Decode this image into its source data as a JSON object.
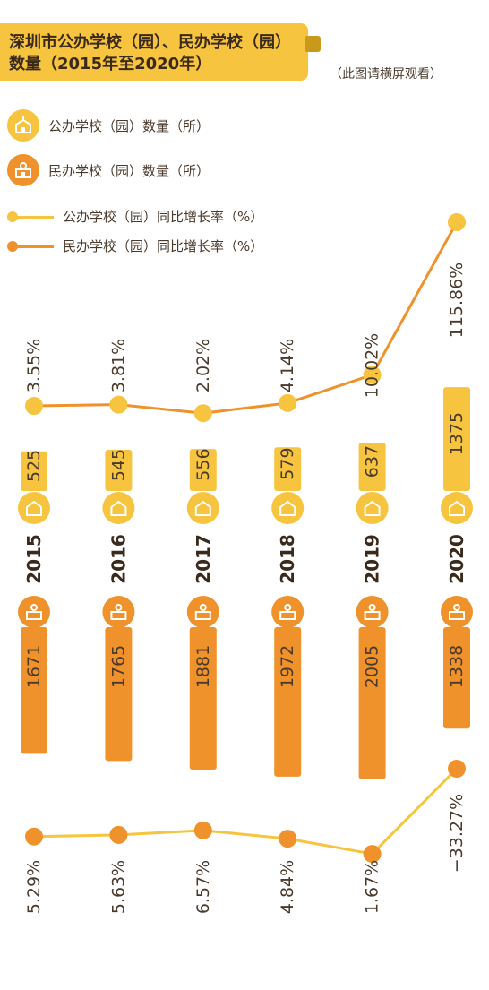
{
  "title": {
    "line1": "深圳市公办学校（园）、民办学校（园）",
    "line2": "数量（2015年至2020年）"
  },
  "note": "（此图请横屏观看）",
  "legend": {
    "public_count": "公办学校（园）数量（所）",
    "private_count": "民办学校（园）数量（所）",
    "public_growth": "公办学校（园）同比增长率（%）",
    "private_growth": "民办学校（园）同比增长率（%）"
  },
  "colors": {
    "public": "#f6c43f",
    "private": "#f0922b",
    "text": "#4a3a2c"
  },
  "icons": {
    "public": "school-building-icon",
    "private": "school-bell-icon"
  },
  "chart_data": {
    "type": "bar",
    "categories": [
      "2015",
      "2016",
      "2017",
      "2018",
      "2019",
      "2020"
    ],
    "series": [
      {
        "name": "公办学校（园）数量（所）",
        "values": [
          525,
          545,
          556,
          579,
          637,
          1375
        ],
        "labels": [
          "525",
          "545",
          "556",
          "579",
          "637",
          "1375"
        ]
      },
      {
        "name": "民办学校（园）数量（所）",
        "values": [
          1671,
          1765,
          1881,
          1972,
          2005,
          1338
        ],
        "labels": [
          "1671",
          "1765",
          "1881",
          "1972",
          "2005",
          "1338"
        ]
      },
      {
        "name": "公办学校（园）同比增长率（%）",
        "type": "line",
        "values": [
          3.55,
          3.81,
          2.02,
          4.14,
          10.02,
          115.86
        ],
        "labels": [
          "3.55%",
          "3.81%",
          "2.02%",
          "4.14%",
          "10.02%",
          "115.86%"
        ]
      },
      {
        "name": "民办学校（园）同比增长率（%）",
        "type": "line",
        "values": [
          5.29,
          5.63,
          6.57,
          4.84,
          1.67,
          -33.27
        ],
        "labels": [
          "5.29%",
          "5.63%",
          "6.57%",
          "4.84%",
          "1.67%",
          "−33.27%"
        ]
      }
    ]
  }
}
